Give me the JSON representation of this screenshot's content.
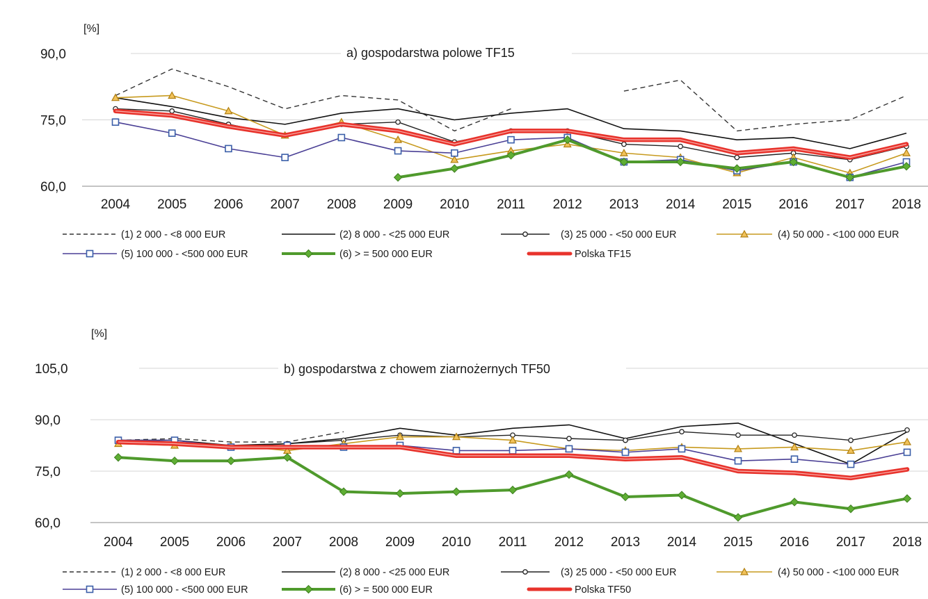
{
  "chart_data": [
    {
      "type": "line",
      "title": "a) gospodarstwa polowe TF15",
      "unit": "[%]",
      "x": [
        "2004",
        "2005",
        "2006",
        "2007",
        "2008",
        "2009",
        "2010",
        "2011",
        "2012",
        "2013",
        "2014",
        "2015",
        "2016",
        "2017",
        "2018"
      ],
      "yticks": [
        "90,0",
        "75,0",
        "60,0"
      ],
      "ylim": [
        60,
        90
      ],
      "grid": "horizontal",
      "series": [
        {
          "name": "(1) 2 000 - <8 000 EUR",
          "color": "#333333",
          "style": "dashed",
          "marker": "none",
          "values": [
            80.5,
            86.5,
            82.5,
            77.5,
            80.5,
            79.5,
            72.5,
            77.5,
            null,
            81.5,
            84.0,
            72.5,
            74.0,
            75.0,
            80.5
          ]
        },
        {
          "name": "(2) 8 000 - <25 000 EUR",
          "color": "#111111",
          "style": "solid",
          "marker": "none",
          "values": [
            80.0,
            78.0,
            75.5,
            74.0,
            76.5,
            77.5,
            75.0,
            76.5,
            77.5,
            73.0,
            72.5,
            70.5,
            71.0,
            68.5,
            72.0
          ]
        },
        {
          "name": "(3) 25 000 - <50 000 EUR",
          "color": "#222222",
          "style": "solid",
          "marker": "circle",
          "values": [
            77.5,
            77.0,
            74.0,
            71.5,
            74.0,
            74.5,
            70.0,
            72.5,
            72.5,
            69.5,
            69.0,
            66.5,
            67.5,
            66.0,
            69.0
          ]
        },
        {
          "name": "(4) 50 000 - <100 000 EUR",
          "color": "#c79a1e",
          "style": "solid",
          "marker": "triangle",
          "values": [
            80.0,
            80.5,
            77.0,
            71.5,
            74.5,
            70.5,
            66.0,
            68.0,
            69.5,
            67.5,
            66.5,
            63.0,
            66.5,
            63.0,
            67.5
          ]
        },
        {
          "name": "(5) 100 000 - <500 000 EUR",
          "color": "#4a3f95",
          "style": "solid",
          "marker": "square",
          "values": [
            74.5,
            72.0,
            68.5,
            66.5,
            71.0,
            68.0,
            67.5,
            70.5,
            71.0,
            65.5,
            66.0,
            63.5,
            65.5,
            62.0,
            65.5
          ]
        },
        {
          "name": "(6) > = 500 000 EUR",
          "color": "#4f9a2c",
          "style": "solid",
          "marker": "diamond",
          "values": [
            null,
            null,
            null,
            null,
            null,
            62.0,
            64.0,
            67.0,
            70.5,
            65.5,
            65.5,
            64.0,
            65.5,
            62.0,
            64.5
          ]
        },
        {
          "name": "Polska TF15",
          "color": "#e8332c",
          "style": "solid",
          "marker": "none",
          "values": [
            77.0,
            76.0,
            73.5,
            71.5,
            74.0,
            72.5,
            69.5,
            72.5,
            72.5,
            70.5,
            70.5,
            67.5,
            68.5,
            66.5,
            69.5
          ]
        }
      ]
    },
    {
      "type": "line",
      "title": "b) gospodarstwa z chowem ziarnożernych TF50",
      "unit": "[%]",
      "x": [
        "2004",
        "2005",
        "2006",
        "2007",
        "2008",
        "2009",
        "2010",
        "2011",
        "2012",
        "2013",
        "2014",
        "2015",
        "2016",
        "2017",
        "2018"
      ],
      "yticks": [
        "105,0",
        "90,0",
        "75,0",
        "60,0"
      ],
      "ylim": [
        60,
        105
      ],
      "grid": "horizontal",
      "series": [
        {
          "name": "(1) 2 000 - <8 000 EUR",
          "color": "#333333",
          "style": "dashed",
          "marker": "none",
          "values": [
            84.0,
            84.5,
            83.5,
            83.5,
            86.5,
            null,
            null,
            null,
            null,
            null,
            null,
            null,
            null,
            null,
            null
          ]
        },
        {
          "name": "(2) 8 000 - <25 000 EUR",
          "color": "#111111",
          "style": "solid",
          "marker": "none",
          "values": [
            84.0,
            84.0,
            82.5,
            83.0,
            84.5,
            87.5,
            85.5,
            87.5,
            88.5,
            84.5,
            88.0,
            89.0,
            83.0,
            77.0,
            86.5
          ]
        },
        {
          "name": "(3) 25 000 - <50 000 EUR",
          "color": "#222222",
          "style": "solid",
          "marker": "circle",
          "values": [
            84.0,
            83.5,
            82.0,
            83.0,
            84.0,
            85.5,
            85.0,
            85.5,
            84.5,
            84.0,
            86.5,
            85.5,
            85.5,
            84.0,
            87.0
          ]
        },
        {
          "name": "(4) 50 000 - <100 000 EUR",
          "color": "#c79a1e",
          "style": "solid",
          "marker": "triangle",
          "values": [
            83.0,
            82.5,
            82.5,
            81.0,
            83.0,
            85.0,
            85.0,
            84.0,
            81.5,
            81.0,
            82.0,
            81.5,
            82.0,
            81.0,
            83.5
          ]
        },
        {
          "name": "(5) 100 000 - <500 000 EUR",
          "color": "#4a3f95",
          "style": "solid",
          "marker": "square",
          "values": [
            84.0,
            84.0,
            82.0,
            82.5,
            82.0,
            82.5,
            81.0,
            81.0,
            81.5,
            80.5,
            81.5,
            78.0,
            78.5,
            77.0,
            80.5
          ]
        },
        {
          "name": "(6) > = 500 000 EUR",
          "color": "#4f9a2c",
          "style": "solid",
          "marker": "diamond",
          "values": [
            79.0,
            78.0,
            78.0,
            79.0,
            69.0,
            68.5,
            69.0,
            69.5,
            74.0,
            67.5,
            68.0,
            61.5,
            66.0,
            64.0,
            67.0
          ]
        },
        {
          "name": "Polska TF50",
          "color": "#e8332c",
          "style": "solid",
          "marker": "none",
          "values": [
            83.5,
            83.0,
            82.0,
            82.0,
            82.0,
            82.0,
            79.5,
            79.5,
            79.5,
            78.5,
            79.0,
            75.0,
            74.5,
            73.0,
            75.5
          ]
        }
      ]
    }
  ]
}
